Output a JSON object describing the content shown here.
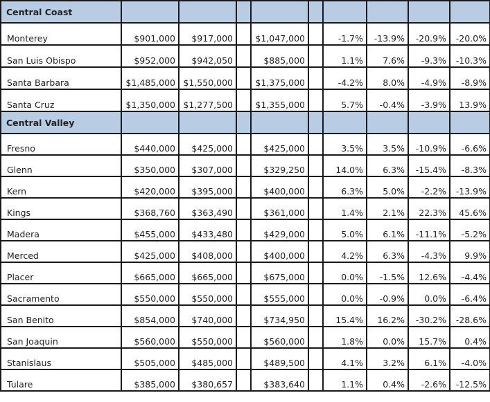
{
  "sections": [
    {
      "title": "Central Coast",
      "rows": [
        {
          "county": "Monterey",
          "v1": "$901,000",
          "v2": "$917,000",
          "v3": "$1,047,000",
          "p1": "-1.7%",
          "p2": "-13.9%",
          "p3": "-20.9%",
          "p4": "-20.0%"
        },
        {
          "county": "San Luis Obispo",
          "v1": "$952,000",
          "v2": "$942,050",
          "v3": "$885,000",
          "p1": "1.1%",
          "p2": "7.6%",
          "p3": "-9.3%",
          "p4": "-10.3%"
        },
        {
          "county": "Santa Barbara",
          "v1": "$1,485,000",
          "v2": "$1,550,000",
          "v3": "$1,375,000",
          "p1": "-4.2%",
          "p2": "8.0%",
          "p3": "-4.9%",
          "p4": "-8.9%"
        },
        {
          "county": "Santa Cruz",
          "v1": "$1,350,000",
          "v2": "$1,277,500",
          "v3": "$1,355,000",
          "p1": "5.7%",
          "p2": "-0.4%",
          "p3": "-3.9%",
          "p4": "13.9%"
        }
      ]
    },
    {
      "title": "Central Valley",
      "rows": [
        {
          "county": "Fresno",
          "v1": "$440,000",
          "v2": "$425,000",
          "v3": "$425,000",
          "p1": "3.5%",
          "p2": "3.5%",
          "p3": "-10.9%",
          "p4": "-6.6%"
        },
        {
          "county": "Glenn",
          "v1": "$350,000",
          "v2": "$307,000",
          "v3": "$329,250",
          "p1": "14.0%",
          "p2": "6.3%",
          "p3": "-15.4%",
          "p4": "-8.3%"
        },
        {
          "county": "Kern",
          "v1": "$420,000",
          "v2": "$395,000",
          "v3": "$400,000",
          "p1": "6.3%",
          "p2": "5.0%",
          "p3": "-2.2%",
          "p4": "-13.9%"
        },
        {
          "county": "Kings",
          "v1": "$368,760",
          "v2": "$363,490",
          "v3": "$361,000",
          "p1": "1.4%",
          "p2": "2.1%",
          "p3": "22.3%",
          "p4": "45.6%"
        },
        {
          "county": "Madera",
          "v1": "$455,000",
          "v2": "$433,480",
          "v3": "$429,000",
          "p1": "5.0%",
          "p2": "6.1%",
          "p3": "-11.1%",
          "p4": "-5.2%"
        },
        {
          "county": "Merced",
          "v1": "$425,000",
          "v2": "$408,000",
          "v3": "$400,000",
          "p1": "4.2%",
          "p2": "6.3%",
          "p3": "-4.3%",
          "p4": "9.9%"
        },
        {
          "county": "Placer",
          "v1": "$665,000",
          "v2": "$665,000",
          "v3": "$675,000",
          "p1": "0.0%",
          "p2": "-1.5%",
          "p3": "12.6%",
          "p4": "-4.4%"
        },
        {
          "county": "Sacramento",
          "v1": "$550,000",
          "v2": "$550,000",
          "v3": "$555,000",
          "p1": "0.0%",
          "p2": "-0.9%",
          "p3": "0.0%",
          "p4": "-6.4%"
        },
        {
          "county": "San Benito",
          "v1": "$854,000",
          "v2": "$740,000",
          "v3": "$734,950",
          "p1": "15.4%",
          "p2": "16.2%",
          "p3": "-30.2%",
          "p4": "-28.6%"
        },
        {
          "county": "San Joaquin",
          "v1": "$560,000",
          "v2": "$550,000",
          "v3": "$560,000",
          "p1": "1.8%",
          "p2": "0.0%",
          "p3": "15.7%",
          "p4": "0.4%"
        },
        {
          "county": "Stanislaus",
          "v1": "$505,000",
          "v2": "$485,000",
          "v3": "$489,500",
          "p1": "4.1%",
          "p2": "3.2%",
          "p3": "6.1%",
          "p4": "-4.0%"
        },
        {
          "county": "Tulare",
          "v1": "$385,000",
          "v2": "$380,657",
          "v3": "$383,640",
          "p1": "1.1%",
          "p2": "0.4%",
          "p3": "-2.6%",
          "p4": "-12.5%"
        }
      ]
    }
  ]
}
